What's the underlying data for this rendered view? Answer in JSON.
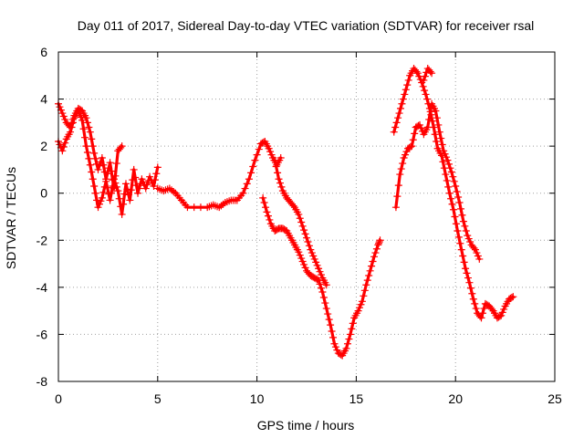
{
  "chart_data": {
    "type": "scatter",
    "title": "Day 011 of 2017, Sidereal Day-to-day VTEC variation (SDTVAR) for receiver rsal",
    "xlabel": "GPS time / hours",
    "ylabel": "SDTVAR / TECUs",
    "xlim": [
      0,
      25
    ],
    "ylim": [
      -8,
      6
    ],
    "x_ticks": [
      0,
      5,
      10,
      15,
      20,
      25
    ],
    "y_ticks": [
      -8,
      -6,
      -4,
      -2,
      0,
      2,
      4,
      6
    ],
    "x_tick_labels": [
      "0",
      "5",
      "10",
      "15",
      "20",
      "25"
    ],
    "y_tick_labels": [
      "-8",
      "-6",
      "-4",
      "-2",
      "0",
      "2",
      "4",
      "6"
    ],
    "grid": true,
    "marker": "plus",
    "series": [
      {
        "name": "track-a",
        "color": "#ff0000",
        "x": [
          0.0,
          0.2,
          0.4,
          0.6,
          0.8,
          1.0,
          1.2,
          1.4,
          1.6,
          1.8,
          2.0,
          2.2,
          2.4,
          2.6,
          2.8,
          3.0,
          3.2,
          3.4,
          3.6,
          3.8,
          4.0,
          4.2,
          4.4,
          4.6,
          4.8,
          5.0
        ],
        "y": [
          2.2,
          1.8,
          2.3,
          2.6,
          3.2,
          3.5,
          3.1,
          2.0,
          1.2,
          0.3,
          -0.6,
          -0.2,
          0.5,
          -0.3,
          0.6,
          0.1,
          -0.9,
          0.4,
          -0.3,
          1.0,
          0.0,
          0.6,
          0.2,
          0.7,
          0.3,
          1.1
        ]
      },
      {
        "name": "track-b",
        "color": "#ff0000",
        "x": [
          0.0,
          0.2,
          0.4,
          0.6,
          0.8,
          1.0,
          1.2,
          1.4,
          1.6,
          1.8,
          2.0,
          2.2,
          2.4,
          2.6,
          2.8,
          3.0,
          3.2
        ],
        "y": [
          3.8,
          3.4,
          3.0,
          2.8,
          3.3,
          3.6,
          3.5,
          3.2,
          2.6,
          1.7,
          1.0,
          1.5,
          0.6,
          1.3,
          0.2,
          1.8,
          2.0
        ]
      },
      {
        "name": "track-c",
        "color": "#ff0000",
        "x": [
          5.0,
          5.3,
          5.6,
          5.9,
          6.2,
          6.5,
          7.5,
          7.8,
          8.1,
          8.4,
          8.7,
          9.0,
          9.3,
          9.6,
          9.9,
          10.2,
          10.4,
          10.6,
          10.8,
          11.0,
          11.2
        ],
        "y": [
          0.2,
          0.1,
          0.2,
          0.0,
          -0.3,
          -0.6,
          -0.6,
          -0.5,
          -0.6,
          -0.4,
          -0.3,
          -0.3,
          0.0,
          0.6,
          1.4,
          2.1,
          2.2,
          1.9,
          1.5,
          1.2,
          1.5
        ]
      },
      {
        "name": "track-d",
        "color": "#ff0000",
        "x": [
          10.3,
          10.5,
          10.7,
          10.9,
          11.1,
          11.3,
          11.5,
          11.7,
          11.9,
          12.1,
          12.3,
          12.5,
          12.7,
          12.9,
          13.1,
          13.3,
          13.5,
          13.7,
          13.9,
          14.1,
          14.3,
          14.5,
          14.7,
          14.9,
          15.1,
          15.3,
          15.5,
          15.7,
          15.9,
          16.1,
          16.2
        ],
        "y": [
          -0.2,
          -0.8,
          -1.3,
          -1.6,
          -1.5,
          -1.5,
          -1.6,
          -1.9,
          -2.2,
          -2.5,
          -2.9,
          -3.3,
          -3.5,
          -3.6,
          -3.7,
          -4.2,
          -4.9,
          -5.6,
          -6.4,
          -6.8,
          -6.9,
          -6.6,
          -6.0,
          -5.3,
          -5.0,
          -4.6,
          -3.9,
          -3.3,
          -2.7,
          -2.2,
          -2.0
        ]
      },
      {
        "name": "track-e",
        "color": "#ff0000",
        "x": [
          10.9,
          11.1,
          11.3,
          11.5,
          11.7,
          11.9,
          12.1,
          12.3,
          12.5,
          12.7,
          12.9,
          13.1,
          13.3,
          13.5
        ],
        "y": [
          1.4,
          0.6,
          0.1,
          -0.2,
          -0.4,
          -0.6,
          -0.9,
          -1.4,
          -1.9,
          -2.4,
          -2.8,
          -3.2,
          -3.6,
          -3.9
        ]
      },
      {
        "name": "track-f",
        "color": "#ff0000",
        "x": [
          16.9,
          17.1,
          17.3,
          17.5,
          17.7,
          17.9,
          18.1,
          18.3,
          18.5,
          18.7,
          18.9,
          19.1,
          19.3,
          19.5,
          19.7,
          19.9,
          20.1,
          20.3,
          20.5,
          20.7,
          20.9,
          21.1,
          21.3,
          21.5,
          21.7,
          21.9,
          22.1,
          22.3,
          22.5,
          22.7,
          22.9
        ],
        "y": [
          2.6,
          3.2,
          3.8,
          4.4,
          5.0,
          5.3,
          5.1,
          4.7,
          4.2,
          3.6,
          2.8,
          1.9,
          1.6,
          0.8,
          0.0,
          -0.7,
          -1.6,
          -2.4,
          -3.2,
          -3.8,
          -4.5,
          -5.1,
          -5.3,
          -4.7,
          -4.8,
          -5.0,
          -5.3,
          -5.2,
          -4.8,
          -4.5,
          -4.4
        ]
      },
      {
        "name": "track-g",
        "color": "#ff0000",
        "x": [
          17.0,
          17.2,
          17.4,
          17.6,
          17.8,
          18.0,
          18.2,
          18.4,
          18.6,
          18.8,
          19.0,
          19.2,
          19.4,
          19.6,
          19.8,
          20.0,
          20.2,
          20.4,
          20.6,
          20.8,
          21.0,
          21.2
        ],
        "y": [
          -0.6,
          0.8,
          1.5,
          1.9,
          2.0,
          2.8,
          2.9,
          2.5,
          2.8,
          3.8,
          3.5,
          2.6,
          1.8,
          1.4,
          0.9,
          0.3,
          -0.4,
          -1.2,
          -1.8,
          -2.2,
          -2.4,
          -2.8
        ]
      },
      {
        "name": "track-h",
        "color": "#ff0000",
        "x": [
          18.4,
          18.6,
          18.8
        ],
        "y": [
          4.8,
          5.3,
          5.1
        ]
      }
    ]
  }
}
